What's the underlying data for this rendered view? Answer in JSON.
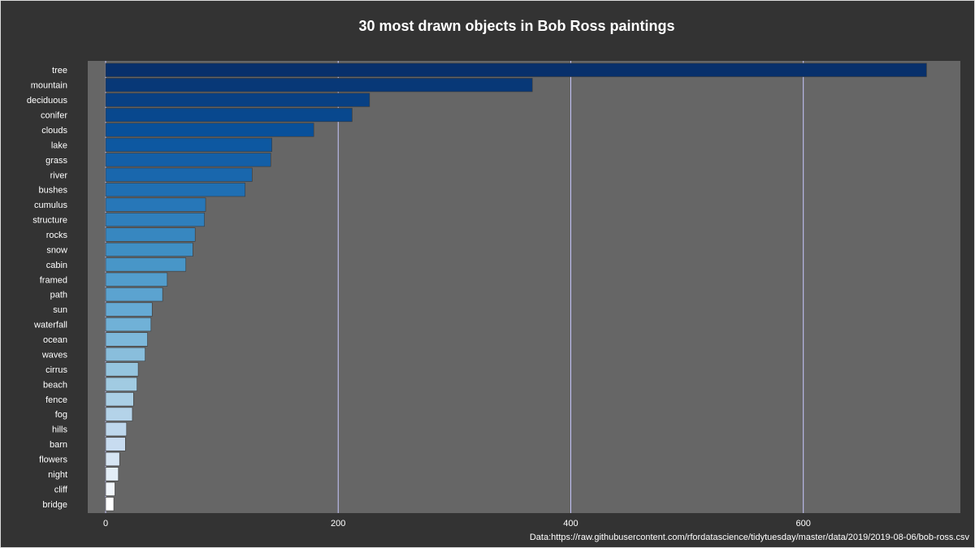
{
  "chart_data": {
    "type": "bar",
    "orientation": "horizontal",
    "title": "30 most drawn objects in Bob Ross paintings",
    "xlabel": "",
    "ylabel": "",
    "caption": "Data:https://raw.githubusercontent.com/rfordatascience/tidytuesday/master/data/2019/2019-08-06/bob-ross.csv",
    "xlim": [
      0,
      735
    ],
    "xticks": [
      0,
      200,
      400,
      600
    ],
    "grid": true,
    "color_scale": [
      "#08306b",
      "#08519c",
      "#2171b5",
      "#4292c6",
      "#6baed6",
      "#9ecae1",
      "#c6dbef",
      "#ffffff"
    ],
    "categories": [
      "tree",
      "mountain",
      "deciduous",
      "conifer",
      "clouds",
      "lake",
      "grass",
      "river",
      "bushes",
      "cumulus",
      "structure",
      "rocks",
      "snow",
      "cabin",
      "framed",
      "path",
      "sun",
      "waterfall",
      "ocean",
      "waves",
      "cirrus",
      "beach",
      "fence",
      "fog",
      "hills",
      "barn",
      "flowers",
      "night",
      "cliff",
      "bridge"
    ],
    "values": [
      706,
      367,
      227,
      212,
      179,
      143,
      142,
      126,
      120,
      86,
      85,
      77,
      75,
      69,
      53,
      49,
      40,
      39,
      36,
      34,
      28,
      27,
      24,
      23,
      18,
      17,
      12,
      11,
      8,
      7
    ]
  },
  "colors": {
    "background": "#333333",
    "panel": "#666666",
    "grid": "#c8c8ff",
    "text": "#ffffff"
  }
}
